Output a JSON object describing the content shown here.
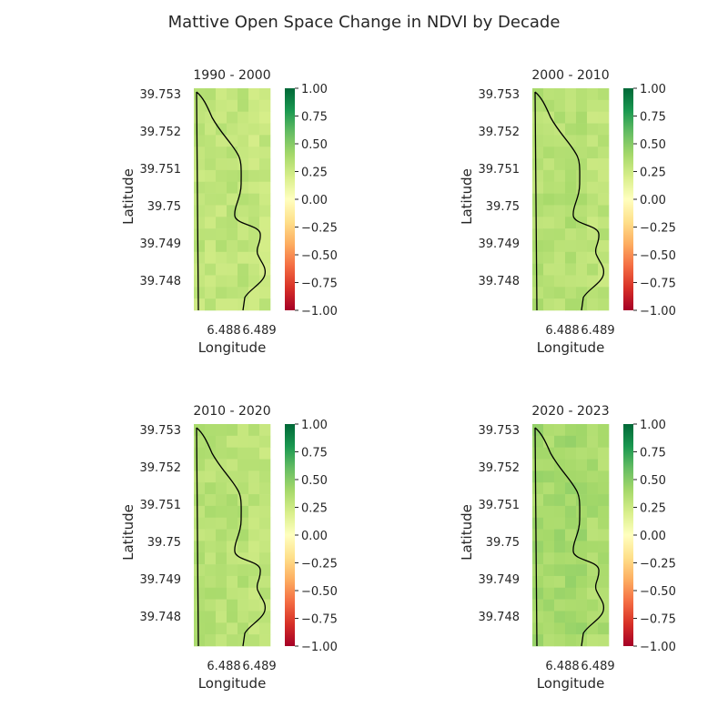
{
  "figure_title": "Mattive Open Space Change in NDVI by Decade",
  "chart_data": [
    {
      "type": "heatmap",
      "title": "1990 - 2000",
      "xlabel": "Longitude",
      "ylabel": "Latitude",
      "xticks": [
        "6.488",
        "6.489"
      ],
      "yticks": [
        "39.753",
        "39.752",
        "39.751",
        "39.75",
        "39.749",
        "39.748"
      ],
      "colorbar": {
        "ticks": [
          "1.00",
          "0.75",
          "0.50",
          "0.25",
          "0.00",
          "−0.25",
          "−0.50",
          "−0.75",
          "−1.00"
        ],
        "vmin": -1,
        "vmax": 1,
        "cmap": "RdYlGn"
      },
      "grid": false
    },
    {
      "type": "heatmap",
      "title": "2000 - 2010",
      "xlabel": "Longitude",
      "ylabel": "Latitude",
      "xticks": [
        "6.488",
        "6.489"
      ],
      "yticks": [
        "39.753",
        "39.752",
        "39.751",
        "39.75",
        "39.749",
        "39.748"
      ],
      "colorbar": {
        "ticks": [
          "1.00",
          "0.75",
          "0.50",
          "0.25",
          "0.00",
          "−0.25",
          "−0.50",
          "−0.75",
          "−1.00"
        ],
        "vmin": -1,
        "vmax": 1,
        "cmap": "RdYlGn"
      },
      "grid": false
    },
    {
      "type": "heatmap",
      "title": "2010 - 2020",
      "xlabel": "Longitude",
      "ylabel": "Latitude",
      "xticks": [
        "6.488",
        "6.489"
      ],
      "yticks": [
        "39.753",
        "39.752",
        "39.751",
        "39.75",
        "39.749",
        "39.748"
      ],
      "colorbar": {
        "ticks": [
          "1.00",
          "0.75",
          "0.50",
          "0.25",
          "0.00",
          "−0.25",
          "−0.50",
          "−0.75",
          "−1.00"
        ],
        "vmin": -1,
        "vmax": 1,
        "cmap": "RdYlGn"
      },
      "grid": false
    },
    {
      "type": "heatmap",
      "title": "2020 - 2023",
      "xlabel": "Longitude",
      "ylabel": "Latitude",
      "xticks": [
        "6.488",
        "6.489"
      ],
      "yticks": [
        "39.753",
        "39.752",
        "39.751",
        "39.75",
        "39.749",
        "39.748"
      ],
      "colorbar": {
        "ticks": [
          "1.00",
          "0.75",
          "0.50",
          "0.25",
          "0.00",
          "−0.25",
          "−0.50",
          "−0.75",
          "−1.00"
        ],
        "vmin": -1,
        "vmax": 1,
        "cmap": "RdYlGn"
      },
      "grid": false
    }
  ]
}
